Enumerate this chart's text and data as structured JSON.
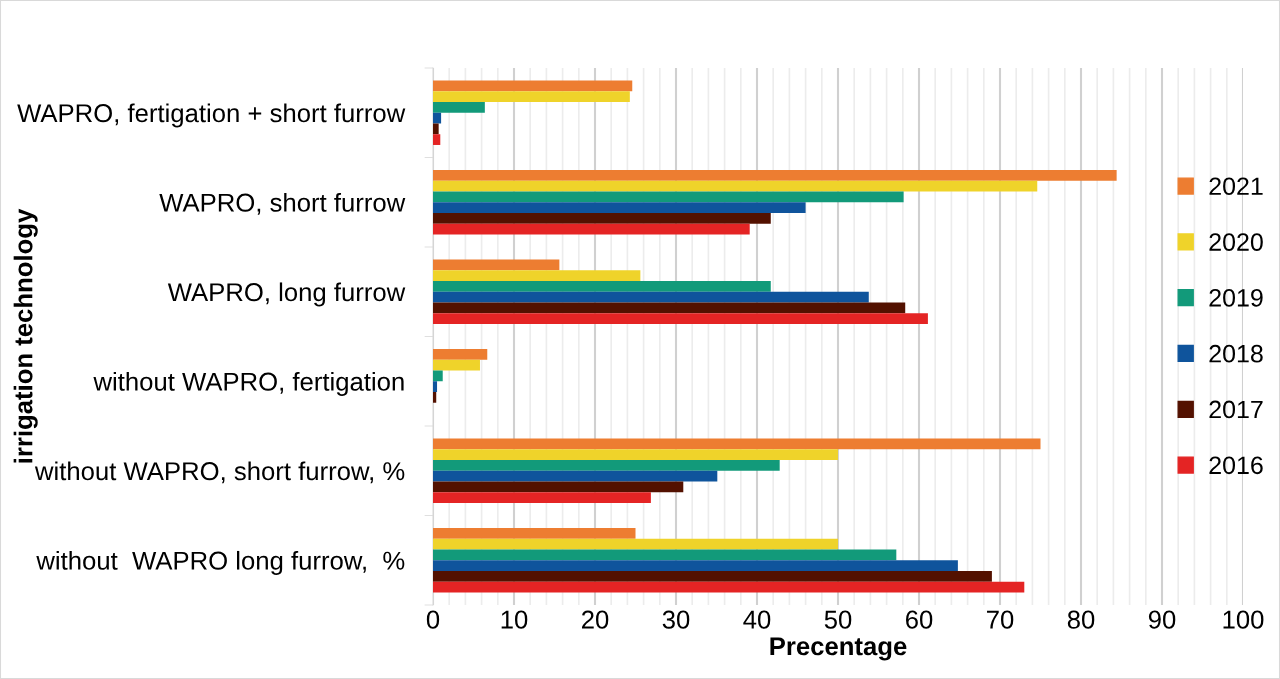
{
  "chart_data": {
    "type": "bar",
    "orientation": "horizontal",
    "xlabel": "Precentage",
    "ylabel": "irrigation technology",
    "categories": [
      "WAPRO, fertigation + short furrow",
      "WAPRO, short furrow",
      "WAPRO, long furrow",
      "without WAPRO, fertigation",
      "without WAPRO, short furrow, %",
      "without  WAPRO long furrow,  %"
    ],
    "series": [
      {
        "name": "2021",
        "color": "#ed7d31",
        "values": [
          24.6,
          84.4,
          15.6,
          6.7,
          75,
          25
        ]
      },
      {
        "name": "2020",
        "color": "#efd32a",
        "values": [
          24.3,
          74.6,
          25.6,
          5.8,
          50,
          50
        ]
      },
      {
        "name": "2019",
        "color": "#129a7a",
        "values": [
          6.4,
          58.1,
          41.7,
          1.2,
          42.8,
          57.2
        ]
      },
      {
        "name": "2018",
        "color": "#0f549c",
        "values": [
          1.0,
          46.0,
          53.8,
          0.5,
          35.1,
          64.8
        ]
      },
      {
        "name": "2017",
        "color": "#531100",
        "values": [
          0.7,
          41.7,
          58.3,
          0.4,
          30.9,
          69.0
        ]
      },
      {
        "name": "2016",
        "color": "#e42424",
        "values": [
          0.9,
          39.1,
          61.1,
          0,
          26.9,
          73
        ]
      }
    ],
    "xlim": [
      0,
      100
    ],
    "xticks": [
      0,
      10,
      20,
      30,
      40,
      50,
      60,
      70,
      80,
      90,
      100
    ],
    "grid": "x",
    "legend": "right"
  }
}
